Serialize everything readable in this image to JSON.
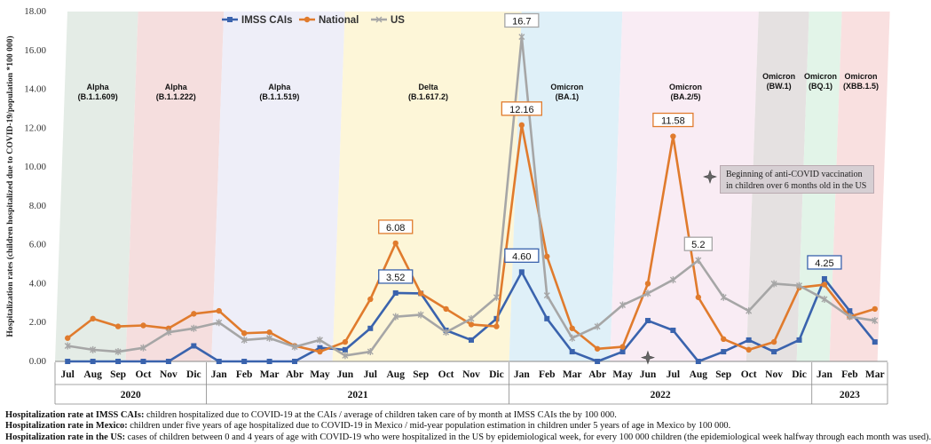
{
  "chart_data": {
    "type": "line",
    "ylabel": "Hospitalization rates (children hospitalized due to COVID-19/population *100 000)",
    "ylim": [
      0,
      18
    ],
    "yticks": [
      "0.00",
      "2.00",
      "4.00",
      "6.00",
      "8.00",
      "10.00",
      "12.00",
      "14.00",
      "16.00",
      "18.00"
    ],
    "categories": [
      "Jul",
      "Aug",
      "Sep",
      "Oct",
      "Nov",
      "Dic",
      "Jan",
      "Feb",
      "Mar",
      "Abr",
      "May",
      "Jun",
      "Jul",
      "Aug",
      "Sep",
      "Oct",
      "Nov",
      "Dic",
      "Jan",
      "Feb",
      "Mar",
      "Abr",
      "May",
      "Jun",
      "Jul",
      "Aug",
      "Sep",
      "Oct",
      "Nov",
      "Dic",
      "Jan",
      "Feb",
      "Mar"
    ],
    "years": [
      {
        "label": "2020",
        "start": 0,
        "end": 5
      },
      {
        "label": "2021",
        "start": 6,
        "end": 17
      },
      {
        "label": "2022",
        "start": 18,
        "end": 29
      },
      {
        "label": "2023",
        "start": 30,
        "end": 32
      }
    ],
    "legend": {
      "position": "top-left"
    },
    "series": [
      {
        "name": "IMSS CAIs",
        "color": "#3a63ad",
        "marker": "square",
        "values": [
          0,
          0,
          0,
          0,
          0,
          0.8,
          0,
          0,
          0,
          0,
          0.7,
          0.6,
          1.7,
          3.52,
          3.5,
          1.6,
          1.1,
          2.2,
          4.6,
          2.2,
          0.5,
          0,
          0.5,
          2.1,
          1.6,
          0,
          0.5,
          1.1,
          0.5,
          1.1,
          4.25,
          2.6,
          1.0
        ]
      },
      {
        "name": "National",
        "color": "#e07b2d",
        "marker": "circle",
        "values": [
          1.2,
          2.2,
          1.8,
          1.85,
          1.7,
          2.45,
          2.6,
          1.45,
          1.5,
          0.8,
          0.5,
          1.0,
          3.2,
          6.08,
          3.5,
          2.7,
          1.9,
          1.8,
          12.16,
          5.4,
          1.7,
          0.65,
          0.75,
          4.0,
          11.58,
          3.3,
          1.15,
          0.6,
          1.0,
          3.8,
          3.95,
          2.3,
          2.7
        ]
      },
      {
        "name": "US",
        "color": "#a6a6a6",
        "marker": "x",
        "values": [
          0.8,
          0.6,
          0.5,
          0.7,
          1.5,
          1.7,
          2.0,
          1.1,
          1.2,
          0.75,
          1.1,
          0.3,
          0.5,
          2.3,
          2.4,
          1.5,
          2.2,
          3.3,
          16.7,
          3.4,
          1.2,
          1.8,
          2.9,
          3.5,
          4.2,
          5.2,
          3.3,
          2.6,
          4.0,
          3.9,
          3.2,
          2.3,
          2.1
        ]
      }
    ],
    "data_labels": [
      {
        "text": "6.08",
        "series": "National",
        "index": 13
      },
      {
        "text": "3.52",
        "series": "IMSS CAIs",
        "index": 13
      },
      {
        "text": "16.7",
        "series": "US",
        "index": 18
      },
      {
        "text": "12.16",
        "series": "National",
        "index": 18
      },
      {
        "text": "4.60",
        "series": "IMSS CAIs",
        "index": 18
      },
      {
        "text": "11.58",
        "series": "National",
        "index": 24
      },
      {
        "text": "5.2",
        "series": "US",
        "index": 25
      },
      {
        "text": "4.25",
        "series": "IMSS CAIs",
        "index": 30
      }
    ],
    "variant_bands": [
      {
        "name": "Alpha",
        "sub": "(B.1.1.609)",
        "start": 0,
        "end": 2.8,
        "color": "#e4ece6"
      },
      {
        "name": "Alpha",
        "sub": "(B.1.1.222)",
        "start": 2.8,
        "end": 6.2,
        "color": "#f5dede"
      },
      {
        "name": "Alpha",
        "sub": "(B.1.1.519)",
        "start": 6.2,
        "end": 11.0,
        "color": "#eeeef8"
      },
      {
        "name": "Delta",
        "sub": "(B.1.617.2)",
        "start": 11.0,
        "end": 18.0,
        "color": "#fdf6d8"
      },
      {
        "name": "Omicron",
        "sub": "(BA.1)",
        "start": 18.0,
        "end": 22.0,
        "color": "#dff0f8"
      },
      {
        "name": "Omicron",
        "sub": "(BA.2/5)",
        "start": 22.0,
        "end": 27.4,
        "color": "#f9ecf4"
      },
      {
        "name": "Omicron",
        "sub": "(BW.1)",
        "start": 27.4,
        "end": 29.4,
        "color": "#e5e1e1"
      },
      {
        "name": "Omicron",
        "sub": "(BQ.1)",
        "start": 29.4,
        "end": 30.7,
        "color": "#e2f4e8"
      },
      {
        "name": "Omicron",
        "sub": "(XBB.1.5)",
        "start": 30.7,
        "end": 32.6,
        "color": "#f9e0e0"
      }
    ],
    "vaccination_marker": {
      "index": 23,
      "value": 0.2,
      "legend_value": 9.5
    }
  },
  "vaccination_note": "Beginning of anti-COVID vaccination in children over 6 months old in the US",
  "footnotes": [
    {
      "label": "Hospitalization rate at IMSS CAIs:",
      "text": " children hospitalized due to COVID-19 at the CAIs / average of children taken care of by month at IMSS CAIs the by 100 000."
    },
    {
      "label": "Hospitalization rate in Mexico:",
      "text": " children under five years of age hospitalized due to COVID-19 in Mexico / mid-year population estimation in children under 5 years of age in Mexico by 100 000."
    },
    {
      "label": "Hospitalization rate in the US:",
      "text": " cases of children between 0 and 4 years of age with COVID-19 who were hospitalized in the US by epidemiological week, for every 100 000 children (the epidemiological week halfway through each month was used)."
    }
  ]
}
